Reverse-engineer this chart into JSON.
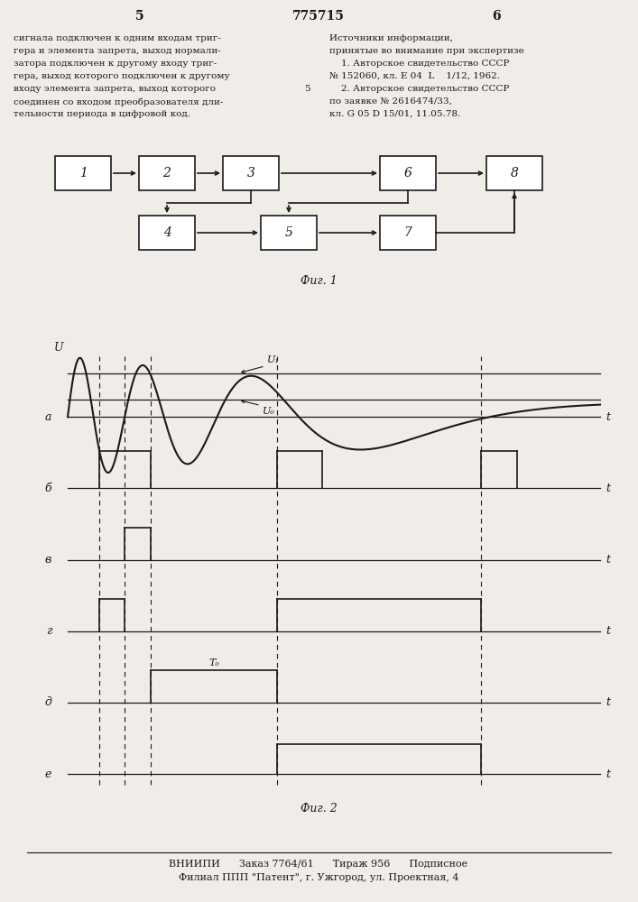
{
  "bg_color": "#f0ede8",
  "page_num_left": "5",
  "page_num_center": "775715",
  "page_num_right": "6",
  "left_text_lines": [
    "сигнала подключен к одним входам триг-",
    "гера и элемента запрета, выход нормали-",
    "затора подключен к другому входу триг-",
    "гера, выход которого подключен к другому",
    "входу элемента запрета, выход которого",
    "соединен со входом преобразователя дли-",
    "тельности периода в цифровой код."
  ],
  "right_text_lines": [
    "Источники информации,",
    "принятые во внимание при экспертизе",
    "    1. Авторское свидетельство СССР",
    "№ 152060, кл. Е 04  L    1/12, 1962.",
    "    2. Авторское свидетельство СССР",
    "по заявке № 2616474/33,",
    "кл. G 05 D 15/01, 11.05.78."
  ],
  "mid_number": "5",
  "fig1_label": "Фиг. 1",
  "fig2_label": "Фиг. 2",
  "footer_line1": "ВНИИПИ      Заказ 7764/61      Тираж 956      Подписное",
  "footer_line2": "Филиал ППП \"Патент\", г. Ужгород, ул. Проектная, 4",
  "wf_row_labels": [
    "а",
    "б",
    "в",
    "г",
    "д",
    "е"
  ]
}
